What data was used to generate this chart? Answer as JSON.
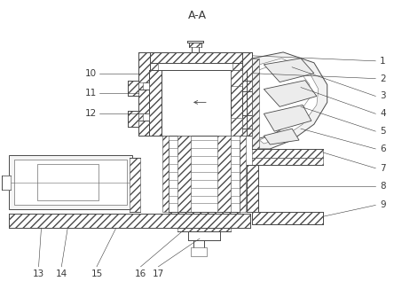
{
  "title": "A-A",
  "bg_color": "#ffffff",
  "lc": "#4a4a4a",
  "lc_thin": "#6a6a6a",
  "hatch_lw": 0.4,
  "main_lw": 0.7,
  "thin_lw": 0.4,
  "label_fs": 7.5,
  "title_fs": 9,
  "label_color": "#3a3a3a"
}
